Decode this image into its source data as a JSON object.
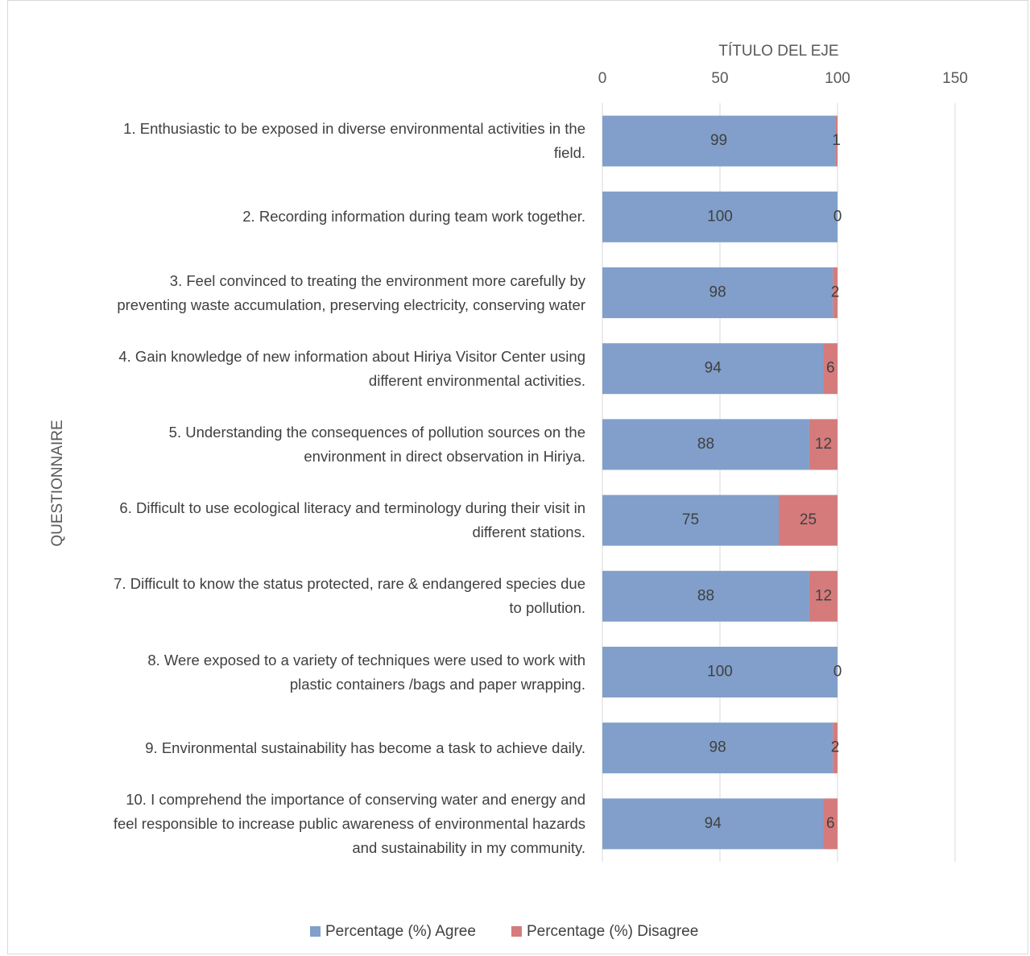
{
  "chart_data": {
    "type": "bar",
    "orientation": "horizontal",
    "stacked": true,
    "x_label": "TÍTULO DEL EJE",
    "y_label": "QUESTIONNAIRE",
    "categories": [
      "1. Enthusiastic to be exposed in diverse environmental activities in the field.",
      "2. Recording information during team work together.",
      "3. Feel convinced to treating the environment more carefully by preventing waste accumulation, preserving electricity, conserving water",
      "4. Gain knowledge of new information about Hiriya Visitor Center using different environmental activities.",
      "5. Understanding the consequences of pollution sources on the environment in direct observation in Hiriya.",
      "6. Difficult to use ecological literacy and terminology during their visit in different stations.",
      "7. Difficult to know the status protected, rare & endangered species due to pollution.",
      "8. Were exposed to a variety of techniques were used to work with plastic containers /bags and paper wrapping.",
      "9. Environmental sustainability has become a task to achieve daily.",
      "10. I comprehend the importance of conserving water and energy and feel responsible to increase public awareness of environmental hazards and sustainability in my community."
    ],
    "series": [
      {
        "name": "Percentage (%) Agree",
        "color": "#819fca",
        "values": [
          99,
          100,
          98,
          94,
          88,
          75,
          88,
          100,
          98,
          94
        ]
      },
      {
        "name": "Percentage (%) Disagree",
        "color": "#d57b7c",
        "values": [
          1,
          0,
          2,
          6,
          12,
          25,
          12,
          0,
          2,
          6
        ]
      }
    ],
    "xlim": [
      0,
      150
    ],
    "xticks": [
      0,
      50,
      100,
      150
    ],
    "grid": true,
    "legend": "bottom"
  }
}
